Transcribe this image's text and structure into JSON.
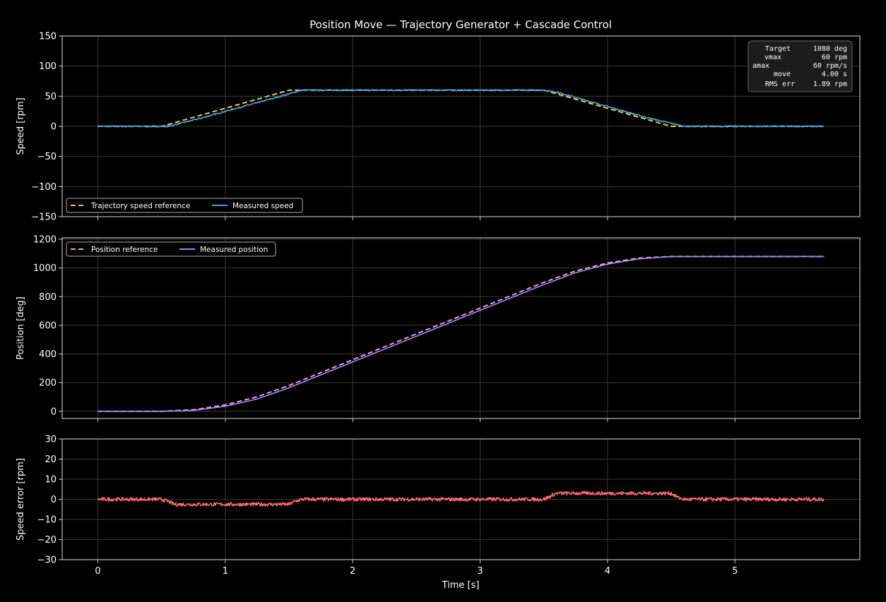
{
  "title": "Position Move — Trajectory Generator + Cascade Control",
  "xlabel": "Time [s]",
  "info_box": [
    {
      "label": "Target",
      "value": "1080 deg"
    },
    {
      "label": "vmax",
      "value": "60 rpm"
    },
    {
      "label": "amax",
      "value": "60 rpm/s"
    },
    {
      "label": "move",
      "value": "4.00 s"
    },
    {
      "label": "RMS err",
      "value": "1.89 rpm"
    }
  ],
  "colors": {
    "background": "#000000",
    "speed_reference": "#f0c93a",
    "speed_measured": "#4aa3df",
    "position_reference": "#e89be8",
    "position_measured": "#a58be8",
    "speed_error": "#ff6b6b",
    "grid": "#3a3a3a"
  },
  "chart_data": [
    {
      "type": "line",
      "ylabel": "Speed [rpm]",
      "xlim": [
        -0.28,
        5.98
      ],
      "ylim": [
        -150,
        150
      ],
      "xticks": [
        0,
        1,
        2,
        3,
        4,
        5
      ],
      "yticks": [
        -150,
        -100,
        -50,
        0,
        50,
        100,
        150
      ],
      "ytick_labels": [
        "−150",
        "−100",
        "−50",
        "0",
        "50",
        "100",
        "150"
      ],
      "grid": true,
      "legend_position": "lower-left",
      "series": [
        {
          "name": "Trajectory speed reference",
          "style": "dashed",
          "x": [
            0,
            0.5,
            1.5,
            3.5,
            4.5,
            5.7
          ],
          "y": [
            0,
            0,
            60,
            60,
            0,
            0
          ]
        },
        {
          "name": "Measured speed",
          "style": "solid",
          "x": [
            0,
            0.5,
            0.55,
            0.8,
            1.0,
            1.3,
            1.6,
            2.0,
            3.0,
            3.5,
            3.6,
            4.0,
            4.3,
            4.6,
            5.0,
            5.7
          ],
          "y": [
            0,
            0,
            0,
            13,
            25,
            42,
            60,
            60,
            60,
            60,
            57,
            33,
            15,
            0,
            0,
            0
          ]
        }
      ]
    },
    {
      "type": "line",
      "ylabel": "Position [deg]",
      "xlim": [
        -0.28,
        5.98
      ],
      "ylim": [
        -50,
        1210
      ],
      "xticks": [
        0,
        1,
        2,
        3,
        4,
        5
      ],
      "yticks": [
        0,
        200,
        400,
        600,
        800,
        1000,
        1200
      ],
      "grid": true,
      "legend_position": "upper-left",
      "series": [
        {
          "name": "Position reference",
          "style": "dashed",
          "x": [
            0,
            0.5,
            0.75,
            1.0,
            1.25,
            1.5,
            2.0,
            2.5,
            3.0,
            3.5,
            3.75,
            4.0,
            4.25,
            4.5,
            5.7
          ],
          "y": [
            0,
            0,
            11,
            45,
            101,
            180,
            360,
            540,
            720,
            900,
            979,
            1035,
            1069,
            1080,
            1080
          ]
        },
        {
          "name": "Measured position",
          "style": "solid",
          "x": [
            0,
            0.5,
            0.75,
            1.0,
            1.25,
            1.5,
            2.0,
            2.5,
            3.0,
            3.5,
            3.75,
            4.0,
            4.25,
            4.5,
            5.7
          ],
          "y": [
            0,
            0,
            6,
            35,
            86,
            164,
            344,
            524,
            704,
            884,
            967,
            1027,
            1064,
            1079,
            1080
          ]
        }
      ]
    },
    {
      "type": "line",
      "ylabel": "Speed error [rpm]",
      "xlim": [
        -0.28,
        5.98
      ],
      "ylim": [
        -30,
        30
      ],
      "xticks": [
        0,
        1,
        2,
        3,
        4,
        5
      ],
      "yticks": [
        -30,
        -20,
        -10,
        0,
        10,
        20,
        30
      ],
      "ytick_labels": [
        "−30",
        "−20",
        "−10",
        "0",
        "10",
        "20",
        "30"
      ],
      "grid": true,
      "series": [
        {
          "name": "Speed error",
          "style": "solid",
          "x": [
            0,
            0.5,
            0.55,
            0.6,
            1.0,
            1.5,
            1.55,
            1.6,
            2.0,
            3.0,
            3.5,
            3.55,
            3.6,
            4.0,
            4.5,
            4.55,
            4.6,
            5.0,
            5.7
          ],
          "y": [
            0,
            0,
            -1,
            -2.5,
            -2.5,
            -2.5,
            -1,
            0,
            0,
            0,
            0,
            1.5,
            3,
            3,
            3,
            1,
            0,
            0,
            0
          ]
        }
      ]
    }
  ]
}
